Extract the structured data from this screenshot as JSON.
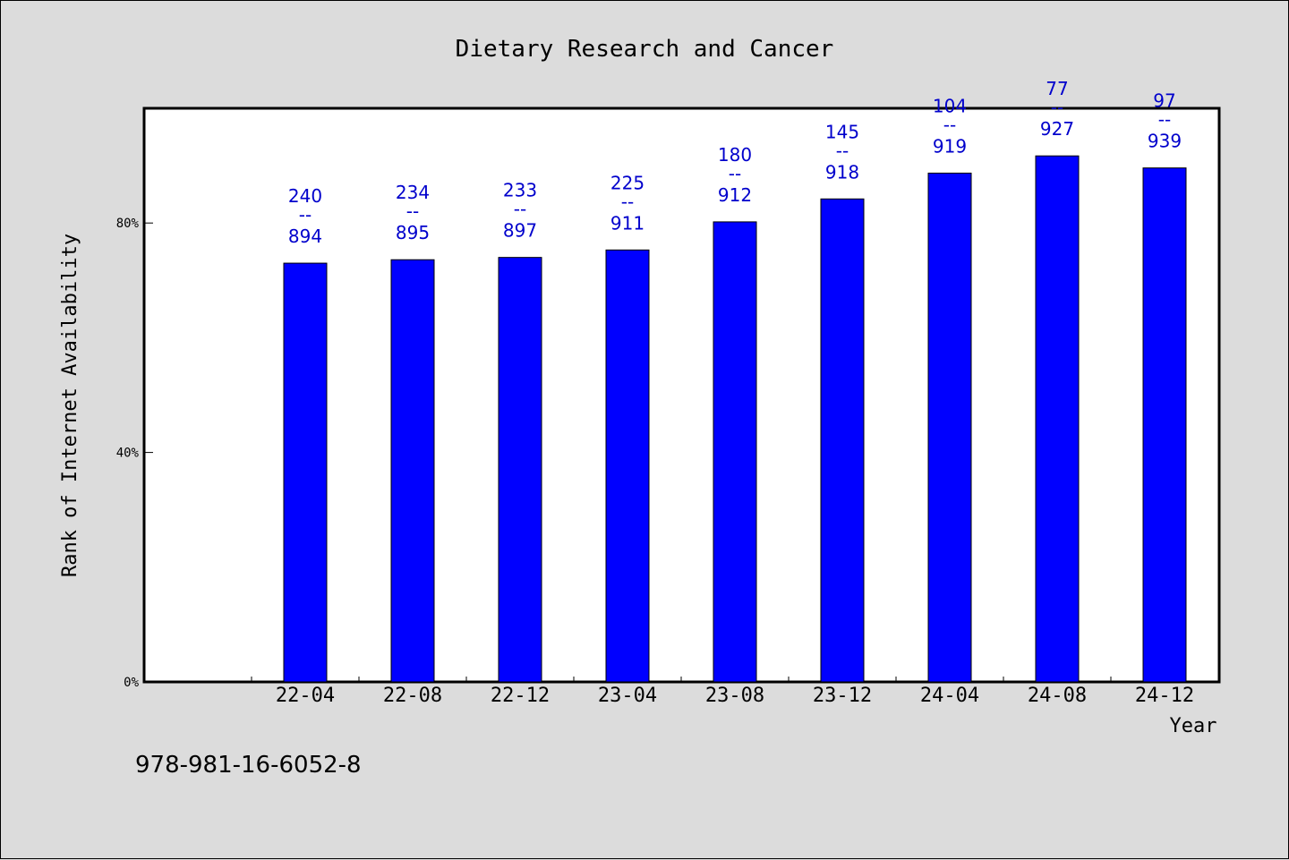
{
  "chart_data": {
    "type": "bar",
    "title": "Dietary Research and Cancer",
    "xlabel": "Year",
    "ylabel": "Rank of Internet Availability",
    "ylim": [
      0,
      100
    ],
    "yticks": [
      {
        "value": 0,
        "label": "0%"
      },
      {
        "value": 40,
        "label": "40%"
      },
      {
        "value": 80,
        "label": "80%"
      }
    ],
    "categories": [
      "22-04",
      "22-08",
      "22-12",
      "23-04",
      "23-08",
      "23-12",
      "24-04",
      "24-08",
      "24-12"
    ],
    "values": [
      73.0,
      73.6,
      74.0,
      75.3,
      80.2,
      84.2,
      88.7,
      91.7,
      89.6
    ],
    "ranks": [
      "240",
      "234",
      "233",
      "225",
      "180",
      "145",
      "104",
      "77",
      "97"
    ],
    "totals": [
      "894",
      "895",
      "897",
      "911",
      "912",
      "918",
      "919",
      "927",
      "939"
    ],
    "separator": "--",
    "bar_color": "#0000ff",
    "label_color": "#0000cc",
    "grid": false,
    "legend": "none"
  },
  "footer": {
    "isbn": "978-981-16-6052-8"
  }
}
